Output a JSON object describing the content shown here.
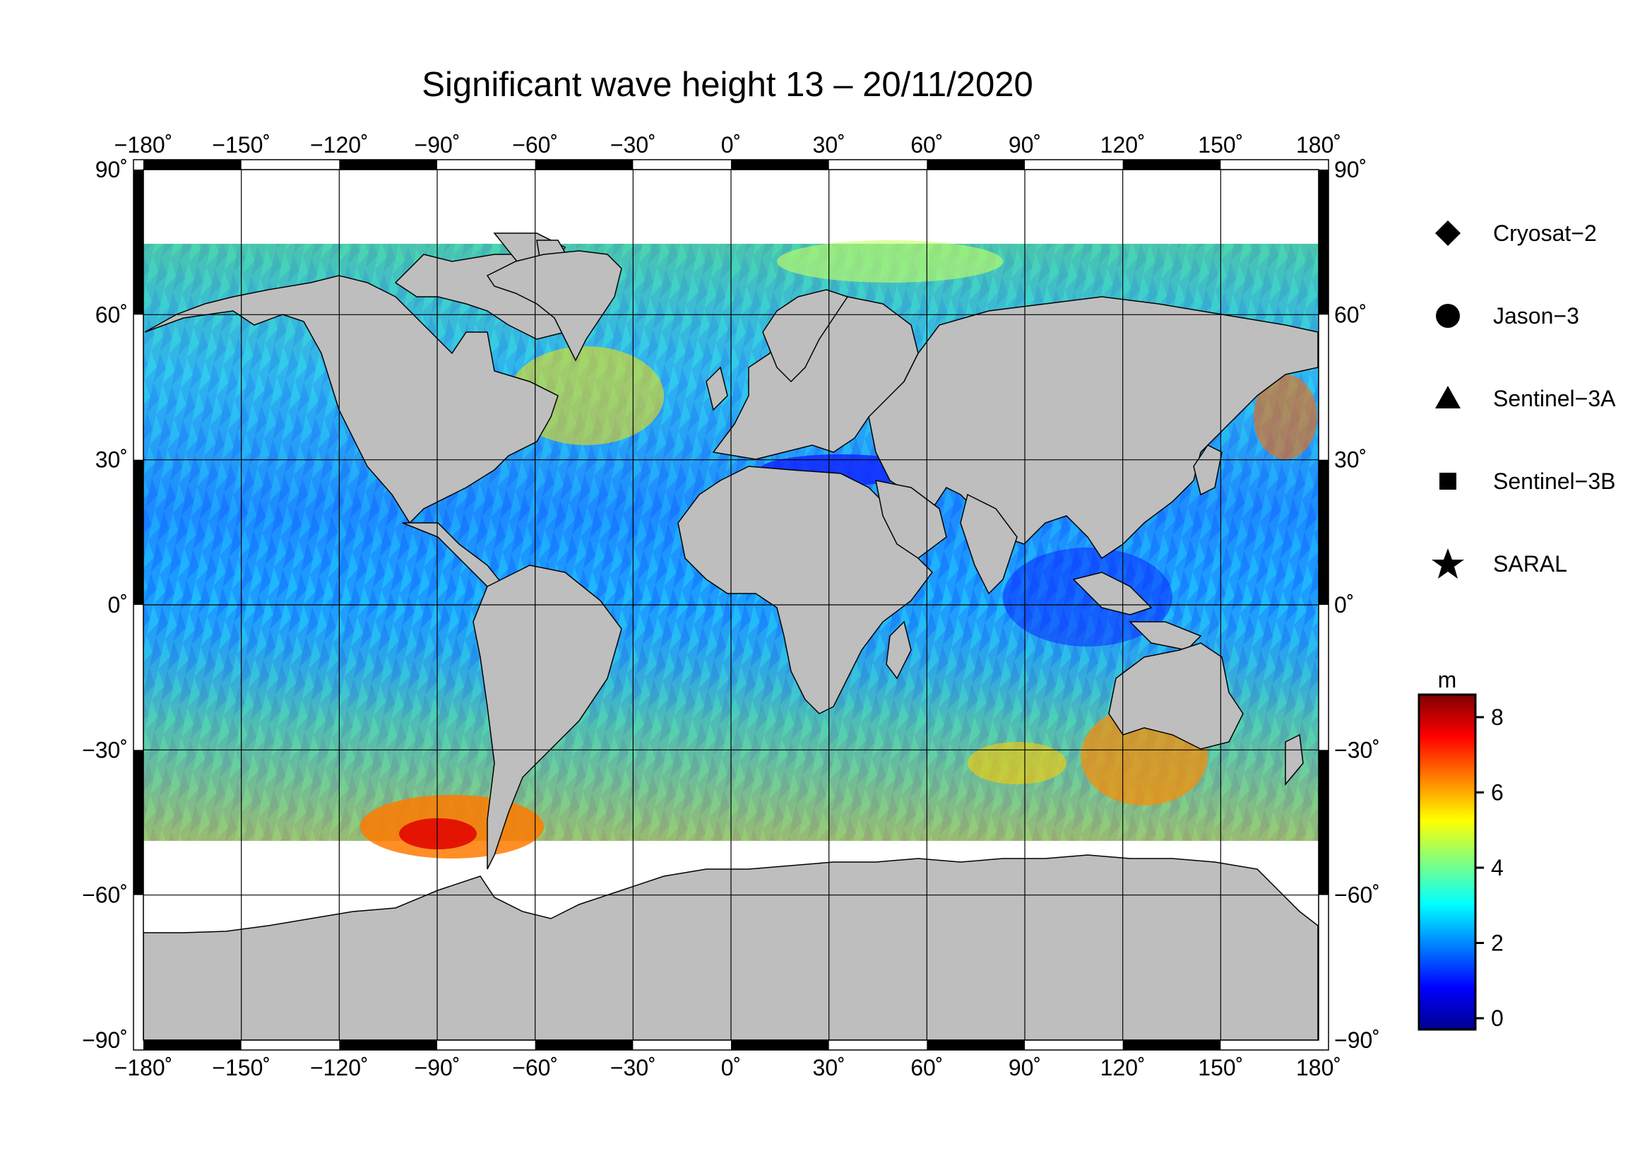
{
  "title": "Significant wave height 13 – 20/11/2020",
  "map": {
    "lon_ticks": [
      "−180˚",
      "−150˚",
      "−120˚",
      "−90˚",
      "−60˚",
      "−30˚",
      "0˚",
      "30˚",
      "60˚",
      "90˚",
      "120˚",
      "150˚",
      "180˚"
    ],
    "lat_ticks": [
      "90˚",
      "60˚",
      "30˚",
      "0˚",
      "−30˚",
      "−60˚",
      "−90˚"
    ],
    "lon_values": [
      -180,
      -150,
      -120,
      -90,
      -60,
      -30,
      0,
      30,
      60,
      90,
      120,
      150,
      180
    ],
    "lat_values": [
      90,
      60,
      30,
      0,
      -30,
      -60,
      -90
    ],
    "land_color": "#bebebe",
    "ice_color": "#ffffff"
  },
  "legend": {
    "items": [
      {
        "label": "Cryosat−2",
        "symbol": "diamond"
      },
      {
        "label": "Jason−3",
        "symbol": "circle"
      },
      {
        "label": "Sentinel−3A",
        "symbol": "triangle"
      },
      {
        "label": "Sentinel−3B",
        "symbol": "square"
      },
      {
        "label": "SARAL",
        "symbol": "star"
      }
    ]
  },
  "colorbar": {
    "unit": "m",
    "min": -0.3,
    "max": 8.6,
    "ticks": [
      0,
      2,
      4,
      6,
      8
    ],
    "tick_labels": [
      "0",
      "2",
      "4",
      "6",
      "8"
    ],
    "colors": [
      "#00008f",
      "#0000ff",
      "#0080ff",
      "#00ffff",
      "#80ff80",
      "#ffff00",
      "#ff8000",
      "#ff0000",
      "#800000"
    ]
  }
}
